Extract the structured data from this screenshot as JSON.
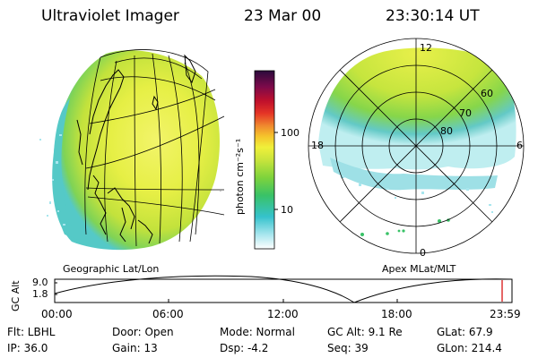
{
  "header": {
    "instrument": "Ultraviolet Imager",
    "date": "23 Mar 00",
    "time": "23:30:14 UT"
  },
  "colorbar": {
    "unit_label": "photon cm⁻²s⁻¹",
    "ticks": [
      "100",
      "10"
    ]
  },
  "geo_panel": {
    "caption": "Geographic Lat/Lon"
  },
  "polar_panel": {
    "caption": "Apex MLat/MLT",
    "mlt_labels": [
      "12",
      "18",
      "6",
      "0"
    ],
    "lat_labels": [
      "60",
      "70",
      "80"
    ]
  },
  "altitude_plot": {
    "ylabel": "GC Alt",
    "yticks": [
      "9.0",
      "1.8"
    ],
    "xticks": [
      "00:00",
      "06:00",
      "12:00",
      "18:00",
      "23:59"
    ],
    "current_time_hours": 23.5
  },
  "info": {
    "filter": "Flt: LBHL",
    "ip": "IP: 36.0",
    "door": "Door: Open",
    "gain": "Gain: 13",
    "mode": "Mode: Normal",
    "dsp": "Dsp:    -4.2",
    "gc_alt": "GC Alt: 9.1 Re",
    "seq": "Seq: 39",
    "glat": "GLat:  67.9",
    "glon": "GLon: 214.4"
  },
  "colors": {
    "background": "#ffffff",
    "current_time_marker": "#d40000",
    "colormap": [
      "#ffffff",
      "#a8e6ee",
      "#35c2cc",
      "#39c267",
      "#7ed33c",
      "#c9e43c",
      "#f0f03a",
      "#f5c52c",
      "#f08a2e",
      "#e53526",
      "#c0102c",
      "#7c0a4a",
      "#2b0a3c"
    ]
  }
}
